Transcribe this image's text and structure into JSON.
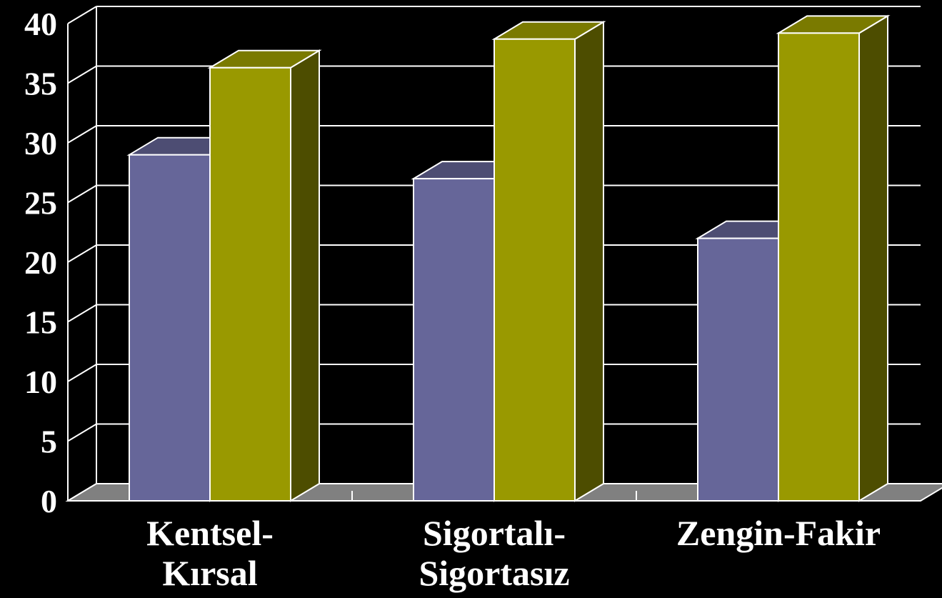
{
  "chart_data": {
    "type": "bar",
    "categories": [
      [
        "Kentsel-",
        "Kırsal"
      ],
      [
        "Sigortalı-",
        "Sigortasız"
      ],
      [
        "Zengin-Fakir"
      ]
    ],
    "series": [
      {
        "color": "#666699",
        "values": [
          29,
          27,
          22
        ]
      },
      {
        "color": "#999900",
        "values": [
          36.3,
          38.7,
          39.2
        ]
      }
    ],
    "yticks": [
      "0",
      "5",
      "10",
      "15",
      "20",
      "25",
      "30",
      "35",
      "40"
    ],
    "ylim": [
      0,
      40
    ],
    "grid": true,
    "three_d": true,
    "title": "",
    "xlabel": "",
    "ylabel": ""
  },
  "colors": {
    "background": "#000000",
    "grid": "#ffffff",
    "floor": "#808080",
    "series1_front": "#666699",
    "series1_top": "#4d4d73",
    "series2_front": "#999900",
    "series2_top": "#7a7a00",
    "series2_side": "#4d4d00"
  }
}
